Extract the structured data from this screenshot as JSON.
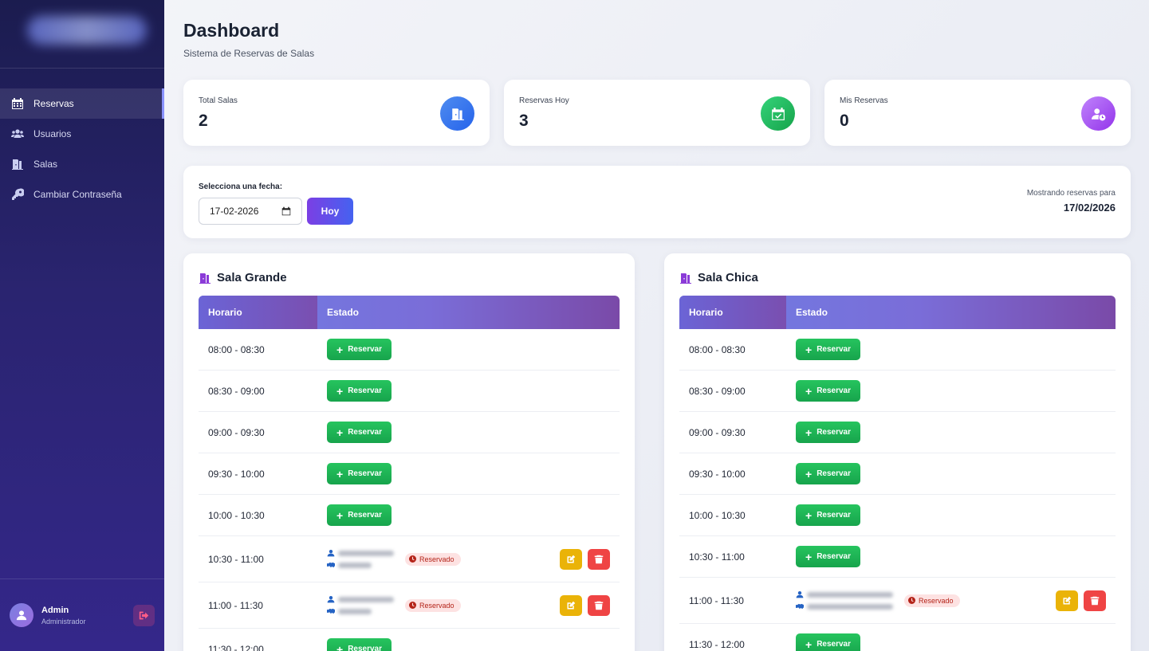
{
  "sidebar": {
    "items": [
      {
        "label": "Reservas",
        "icon": "calendar-icon",
        "active": true
      },
      {
        "label": "Usuarios",
        "icon": "users-icon",
        "active": false
      },
      {
        "label": "Salas",
        "icon": "door-icon",
        "active": false
      },
      {
        "label": "Cambiar Contraseña",
        "icon": "key-icon",
        "active": false
      }
    ],
    "user": {
      "name": "Admin",
      "role": "Administrador"
    }
  },
  "header": {
    "title": "Dashboard",
    "subtitle": "Sistema de Reservas de Salas"
  },
  "stats": [
    {
      "label": "Total Salas",
      "value": "2",
      "icon": "door-icon",
      "color": "#3b82f6"
    },
    {
      "label": "Reservas Hoy",
      "value": "3",
      "icon": "calendar-check-icon",
      "color": "#22c55e"
    },
    {
      "label": "Mis Reservas",
      "value": "0",
      "icon": "user-clock-icon",
      "color": "#a855f7"
    }
  ],
  "date_picker": {
    "label": "Selecciona una fecha:",
    "value": "17-02-2026",
    "today_label": "Hoy",
    "showing_label": "Mostrando reservas para",
    "showing_date": "17/02/2026"
  },
  "table_headers": {
    "time": "Horario",
    "status": "Estado"
  },
  "reserve_label": "Reservar",
  "booked_label": "Reservado",
  "rooms": [
    {
      "name": "Sala Grande",
      "slots": [
        {
          "time": "08:00 - 08:30",
          "booked": false
        },
        {
          "time": "08:30 - 09:00",
          "booked": false
        },
        {
          "time": "09:00 - 09:30",
          "booked": false
        },
        {
          "time": "09:30 - 10:00",
          "booked": false
        },
        {
          "time": "10:00 - 10:30",
          "booked": false
        },
        {
          "time": "10:30 - 11:00",
          "booked": true
        },
        {
          "time": "11:00 - 11:30",
          "booked": true
        },
        {
          "time": "11:30 - 12:00",
          "booked": false
        }
      ]
    },
    {
      "name": "Sala Chica",
      "slots": [
        {
          "time": "08:00 - 08:30",
          "booked": false
        },
        {
          "time": "08:30 - 09:00",
          "booked": false
        },
        {
          "time": "09:00 - 09:30",
          "booked": false
        },
        {
          "time": "09:30 - 10:00",
          "booked": false
        },
        {
          "time": "10:00 - 10:30",
          "booked": false
        },
        {
          "time": "10:30 - 11:00",
          "booked": false
        },
        {
          "time": "11:00 - 11:30",
          "booked": true
        },
        {
          "time": "11:30 - 12:00",
          "booked": false
        }
      ]
    }
  ]
}
